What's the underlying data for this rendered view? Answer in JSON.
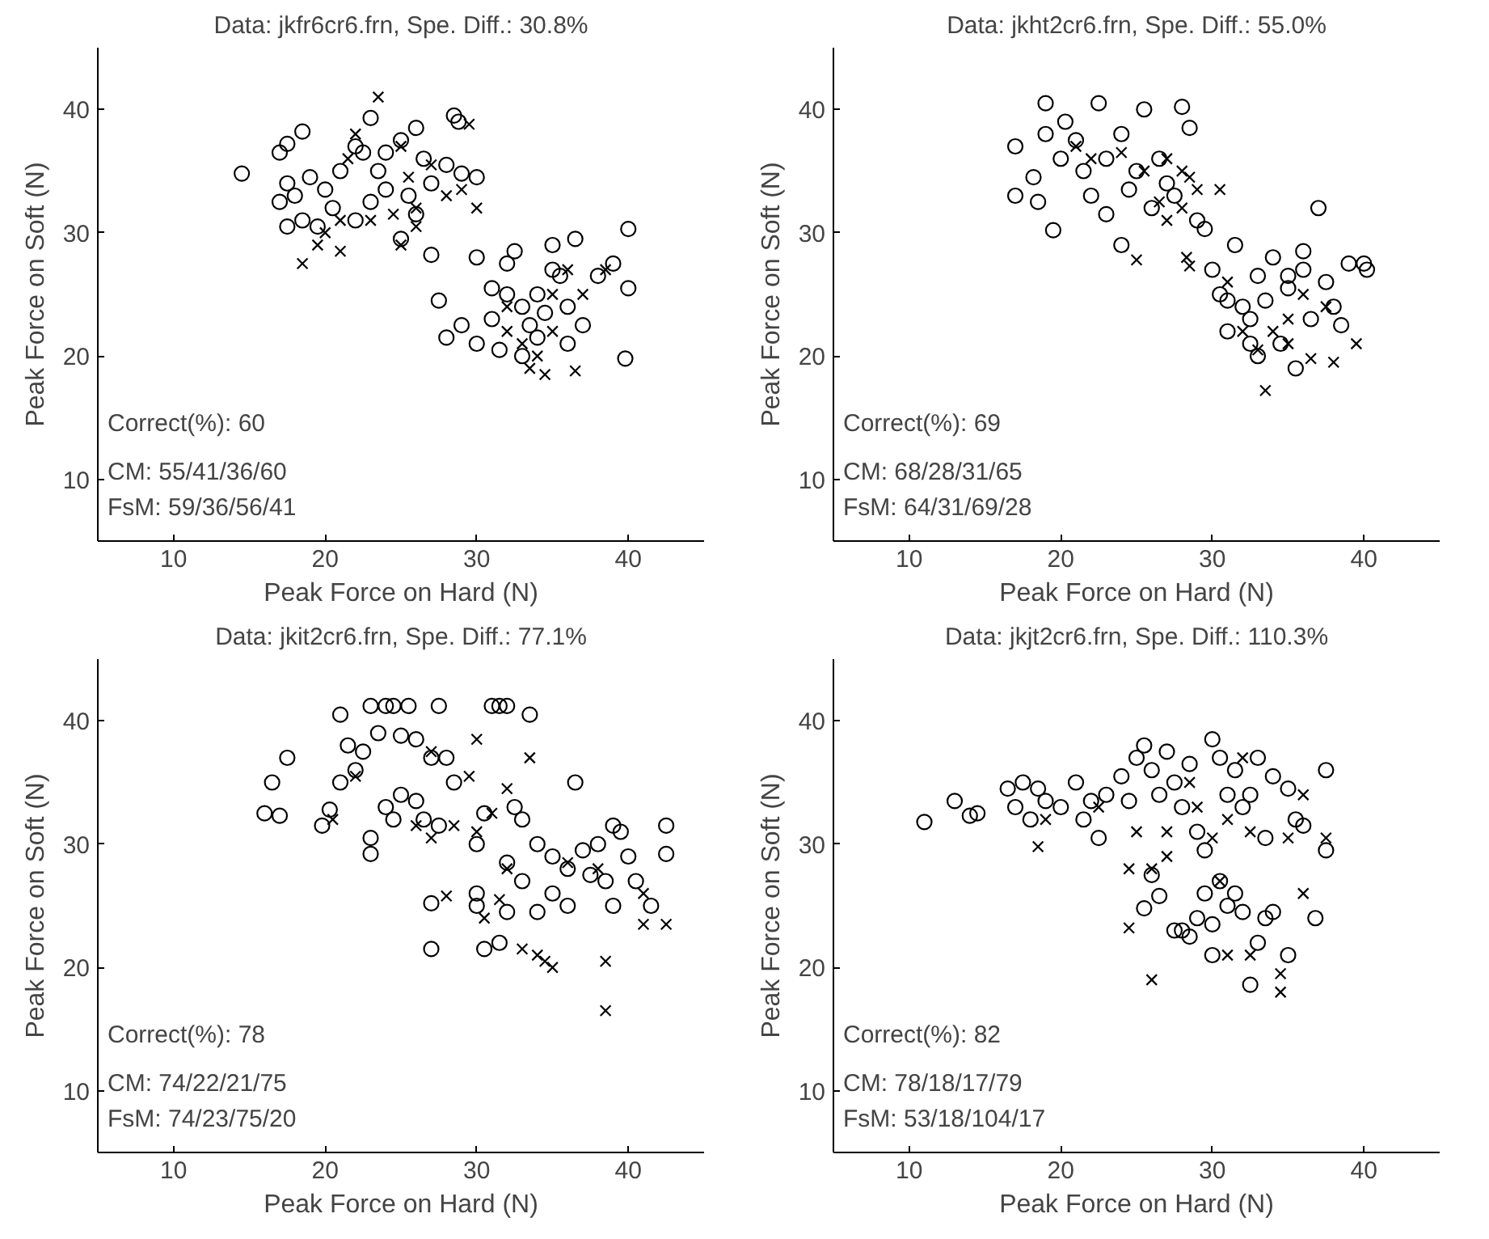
{
  "chart_data": [
    {
      "type": "scatter",
      "title": "Data: jkfr6cr6.frn, Spe. Diff.: 30.8%",
      "xlabel": "Peak Force on Hard (N)",
      "ylabel": "Peak Force on Soft (N)",
      "xlim": [
        5,
        45
      ],
      "ylim": [
        5,
        45
      ],
      "xticks": [
        10,
        20,
        30,
        40
      ],
      "yticks": [
        10,
        20,
        30,
        40
      ],
      "grid": false,
      "annotations": [
        "Correct(%): 60",
        "CM: 55/41/36/60",
        "FsM: 59/36/56/41"
      ],
      "series": [
        {
          "marker": "circle",
          "color": "#000000",
          "x": [
            14.5,
            17.5,
            18.5,
            17,
            17.5,
            18,
            17,
            18.5,
            17.5,
            19,
            20,
            20.5,
            19.5,
            21,
            22,
            23,
            22.5,
            23.5,
            24,
            25,
            26,
            26.5,
            27,
            25.5,
            24,
            23,
            22,
            26,
            28,
            29,
            28.5,
            28.8,
            30,
            27,
            25,
            27.5,
            28,
            29,
            30,
            30,
            31,
            31.5,
            32,
            32.5,
            33,
            33.5,
            34,
            34.5,
            35,
            35.5,
            36,
            36.5,
            36,
            37,
            38,
            39,
            40,
            40,
            39.8,
            33,
            35,
            34,
            31,
            32
          ],
          "values": [
            34.8,
            37.2,
            38.2,
            36.5,
            34,
            33,
            32.5,
            31,
            30.5,
            34.5,
            33.5,
            32,
            30.5,
            35,
            37,
            39.3,
            36.5,
            35,
            36.5,
            37.5,
            38.5,
            36,
            34,
            33,
            33.5,
            32.5,
            31,
            31.5,
            35.5,
            34.8,
            39.5,
            39,
            34.5,
            28.2,
            29.5,
            24.5,
            21.5,
            22.5,
            21,
            28,
            23,
            20.5,
            27.5,
            28.5,
            24,
            22.5,
            25,
            23.5,
            29,
            26.5,
            21,
            29.5,
            24,
            22.5,
            26.5,
            27.5,
            25.5,
            30.3,
            19.8,
            20,
            27,
            21.5,
            25.5,
            25
          ]
        },
        {
          "marker": "cross",
          "color": "#000000",
          "x": [
            23.5,
            29.5,
            22,
            21.5,
            25,
            25.5,
            27,
            28,
            29,
            26,
            24.5,
            23,
            21,
            20,
            19.5,
            18.5,
            21,
            25,
            26,
            30,
            32,
            33,
            34,
            34.5,
            36.5,
            33.5,
            32,
            35,
            38.5,
            37,
            35,
            36
          ],
          "values": [
            41,
            38.8,
            38,
            36,
            37,
            34.5,
            35.5,
            33,
            33.5,
            32,
            31.5,
            31,
            31,
            30,
            29,
            27.5,
            28.5,
            29,
            30.5,
            32,
            24,
            21,
            20,
            18.5,
            18.8,
            19,
            22,
            22,
            27,
            25,
            25,
            27
          ]
        }
      ]
    },
    {
      "type": "scatter",
      "title": "Data: jkht2cr6.frn, Spe. Diff.: 55.0%",
      "xlabel": "Peak Force on Hard (N)",
      "ylabel": "Peak Force on Soft (N)",
      "xlim": [
        5,
        45
      ],
      "ylim": [
        5,
        45
      ],
      "xticks": [
        10,
        20,
        30,
        40
      ],
      "yticks": [
        10,
        20,
        30,
        40
      ],
      "grid": false,
      "annotations": [
        "Correct(%): 69",
        "CM: 68/28/31/65",
        "FsM: 64/31/69/28"
      ],
      "series": [
        {
          "marker": "circle",
          "color": "#000000",
          "x": [
            17,
            17,
            18.2,
            19,
            19,
            18.5,
            19.5,
            20,
            20.3,
            21,
            21.5,
            22,
            22.5,
            23,
            23,
            24,
            24.5,
            25,
            25.5,
            26,
            26.5,
            27,
            27.5,
            28,
            28.5,
            29,
            29.5,
            24,
            30,
            30.5,
            31,
            31.5,
            32,
            32.5,
            33,
            33.5,
            34,
            35,
            35.5,
            36,
            36.5,
            37,
            37.5,
            38,
            39,
            40,
            40.2,
            34.5,
            32.5,
            33,
            31,
            35,
            36,
            38.5
          ],
          "values": [
            37,
            33,
            34.5,
            38,
            40.5,
            32.5,
            30.2,
            36,
            39,
            37.5,
            35,
            33,
            40.5,
            36,
            31.5,
            38,
            33.5,
            35,
            40,
            32,
            36,
            34,
            33,
            40.2,
            38.5,
            31,
            30.3,
            29,
            27,
            25,
            22,
            29,
            24,
            21,
            26.5,
            24.5,
            28,
            25.5,
            19,
            27,
            23,
            32,
            26,
            24,
            27.5,
            27.5,
            27,
            21,
            23,
            20,
            24.5,
            26.5,
            28.5,
            22.5
          ]
        },
        {
          "marker": "cross",
          "color": "#000000",
          "x": [
            21,
            22,
            24,
            25.5,
            27,
            28,
            28.5,
            29,
            30.5,
            27,
            26.5,
            28,
            25,
            28.5,
            28.3,
            32,
            33,
            33.5,
            35,
            36,
            36.5,
            38,
            39.5,
            37.5,
            34,
            31,
            35
          ],
          "values": [
            37,
            36,
            36.5,
            35,
            36,
            35,
            34.5,
            33.5,
            33.5,
            31,
            32.5,
            32,
            27.8,
            27.3,
            28,
            22,
            20.5,
            17.2,
            21,
            25,
            19.8,
            19.5,
            21,
            24,
            22,
            26,
            23
          ]
        }
      ]
    },
    {
      "type": "scatter",
      "title": "Data: jkit2cr6.frn, Spe. Diff.: 77.1%",
      "xlabel": "Peak Force on Hard (N)",
      "ylabel": "Peak Force on Soft (N)",
      "xlim": [
        5,
        45
      ],
      "ylim": [
        5,
        45
      ],
      "xticks": [
        10,
        20,
        30,
        40
      ],
      "yticks": [
        10,
        20,
        30,
        40
      ],
      "grid": false,
      "annotations": [
        "Correct(%): 78",
        "CM: 74/22/21/75",
        "FsM: 74/23/75/20"
      ],
      "series": [
        {
          "marker": "circle",
          "color": "#000000",
          "x": [
            16,
            16.5,
            17,
            17.5,
            19.8,
            20.3,
            21,
            21.5,
            22,
            22.5,
            21,
            23,
            23.5,
            24,
            24.5,
            25,
            25.5,
            26,
            27.5,
            27,
            28,
            28.5,
            23,
            23,
            24,
            25,
            26,
            24.5,
            26.5,
            27.5,
            30,
            30.5,
            31,
            31.5,
            32,
            33.5,
            32.5,
            33,
            32,
            33,
            34,
            35,
            36,
            36.5,
            37,
            38,
            38.5,
            39,
            39.5,
            40,
            39,
            40.5,
            42.5,
            42.5,
            41.5,
            35,
            36,
            34,
            30,
            30,
            27,
            27,
            30.5,
            31.5,
            32,
            37.5
          ],
          "values": [
            32.5,
            35,
            32.3,
            37,
            31.5,
            32.8,
            40.5,
            38,
            36,
            37.5,
            35,
            41.2,
            39,
            41.2,
            41.2,
            38.8,
            41.2,
            38.5,
            41.2,
            37,
            37,
            35,
            30.5,
            29.2,
            33,
            34,
            33.5,
            32,
            32,
            31.5,
            30,
            32.5,
            41.2,
            41.2,
            41.2,
            40.5,
            33,
            32,
            28.5,
            27,
            30,
            29,
            28,
            35,
            29.5,
            30,
            27,
            31.5,
            31,
            29,
            25,
            27,
            31.5,
            29.2,
            25,
            26,
            25,
            24.5,
            26,
            25,
            25.2,
            21.5,
            21.5,
            22,
            24.5,
            27.5
          ]
        },
        {
          "marker": "cross",
          "color": "#000000",
          "x": [
            20.5,
            22,
            27,
            29.5,
            30,
            33.5,
            32,
            26,
            27,
            28.5,
            30,
            31,
            31.5,
            28,
            32,
            33,
            34,
            34.5,
            35,
            38.5,
            38.5,
            41,
            41,
            42.5,
            38,
            36,
            30.5
          ],
          "values": [
            32,
            35.5,
            37.5,
            35.5,
            38.5,
            37,
            34.5,
            31.5,
            30.5,
            31.5,
            31,
            32.5,
            25.5,
            25.8,
            28,
            21.5,
            21,
            20.5,
            20,
            20.5,
            16.5,
            26,
            23.5,
            23.5,
            28,
            28.5,
            24
          ]
        }
      ]
    },
    {
      "type": "scatter",
      "title": "Data: jkjt2cr6.frn, Spe. Diff.: 110.3%",
      "xlabel": "Peak Force on Hard (N)",
      "ylabel": "Peak Force on Soft (N)",
      "xlim": [
        5,
        45
      ],
      "ylim": [
        5,
        45
      ],
      "xticks": [
        10,
        20,
        30,
        40
      ],
      "yticks": [
        10,
        20,
        30,
        40
      ],
      "grid": false,
      "annotations": [
        "Correct(%): 82",
        "CM: 78/18/17/79",
        "FsM: 53/18/104/17"
      ],
      "series": [
        {
          "marker": "circle",
          "color": "#000000",
          "x": [
            11,
            13,
            14,
            14.5,
            16.5,
            17,
            17.5,
            18,
            18.5,
            19,
            20,
            21,
            21.5,
            22,
            22.5,
            23,
            24,
            24.5,
            25,
            25.5,
            26,
            26.5,
            27,
            27.5,
            28,
            28.5,
            29,
            29.5,
            30,
            30.5,
            31,
            31.5,
            32,
            32.5,
            33,
            33.5,
            34,
            35,
            35.5,
            36,
            37.5,
            37.5,
            36.8,
            35,
            34,
            33.5,
            33,
            32.5,
            32,
            31,
            30,
            30,
            29.5,
            29,
            28.5,
            28,
            27.5,
            26.5,
            25.5,
            26,
            30.5,
            31.5
          ],
          "values": [
            31.8,
            33.5,
            32.3,
            32.5,
            34.5,
            33,
            35,
            32,
            34.5,
            33.5,
            33,
            35,
            32,
            33.5,
            30.5,
            34,
            35.5,
            33.5,
            37,
            38,
            36,
            34,
            37.5,
            35,
            33,
            36.5,
            31,
            29.5,
            38.5,
            37,
            34,
            36,
            33,
            34,
            37,
            30.5,
            35.5,
            34.5,
            32,
            31.5,
            36,
            29.5,
            24,
            21,
            24.5,
            24,
            22,
            18.6,
            24.5,
            25,
            21,
            23.5,
            26,
            24,
            22.5,
            23,
            23,
            25.8,
            24.8,
            27.5,
            27,
            26
          ]
        },
        {
          "marker": "cross",
          "color": "#000000",
          "x": [
            18.5,
            19,
            22.5,
            25,
            24.5,
            24.5,
            26,
            27,
            28.5,
            29,
            30,
            31,
            32,
            32.5,
            31,
            32.5,
            34.5,
            34.5,
            36,
            36,
            37.5,
            26,
            30.5,
            35,
            27
          ],
          "values": [
            29.8,
            32,
            33,
            31,
            28,
            23.2,
            28,
            29,
            35,
            33,
            30.5,
            32,
            37,
            31,
            21,
            21,
            19.5,
            18,
            26,
            34,
            30.5,
            19,
            27,
            30.5,
            31
          ]
        }
      ]
    }
  ]
}
